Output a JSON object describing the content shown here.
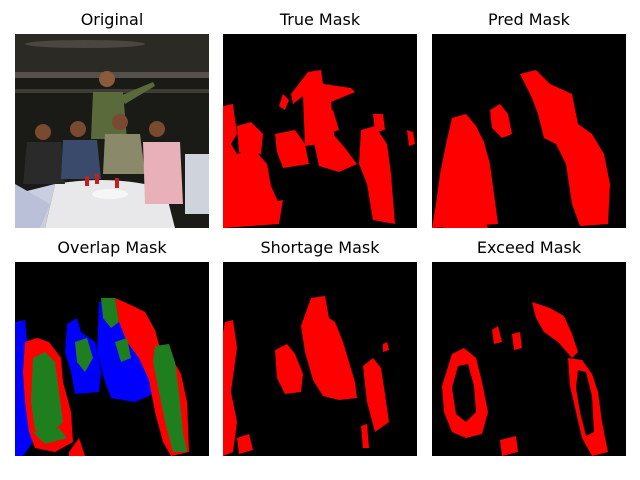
{
  "panels": [
    {
      "id": "original",
      "title": "Original"
    },
    {
      "id": "true-mask",
      "title": "True Mask"
    },
    {
      "id": "pred-mask",
      "title": "Pred Mask"
    },
    {
      "id": "overlap-mask",
      "title": "Overlap Mask"
    },
    {
      "id": "shortage-mask",
      "title": "Shortage Mask"
    },
    {
      "id": "exceed-mask",
      "title": "Exceed Mask"
    }
  ],
  "colors": {
    "background": "#000000",
    "mask": "#ff0000",
    "overlap_correct": "#1f7f1f",
    "overlap_missed": "#ff0000",
    "overlap_extra": "#0000ff"
  }
}
